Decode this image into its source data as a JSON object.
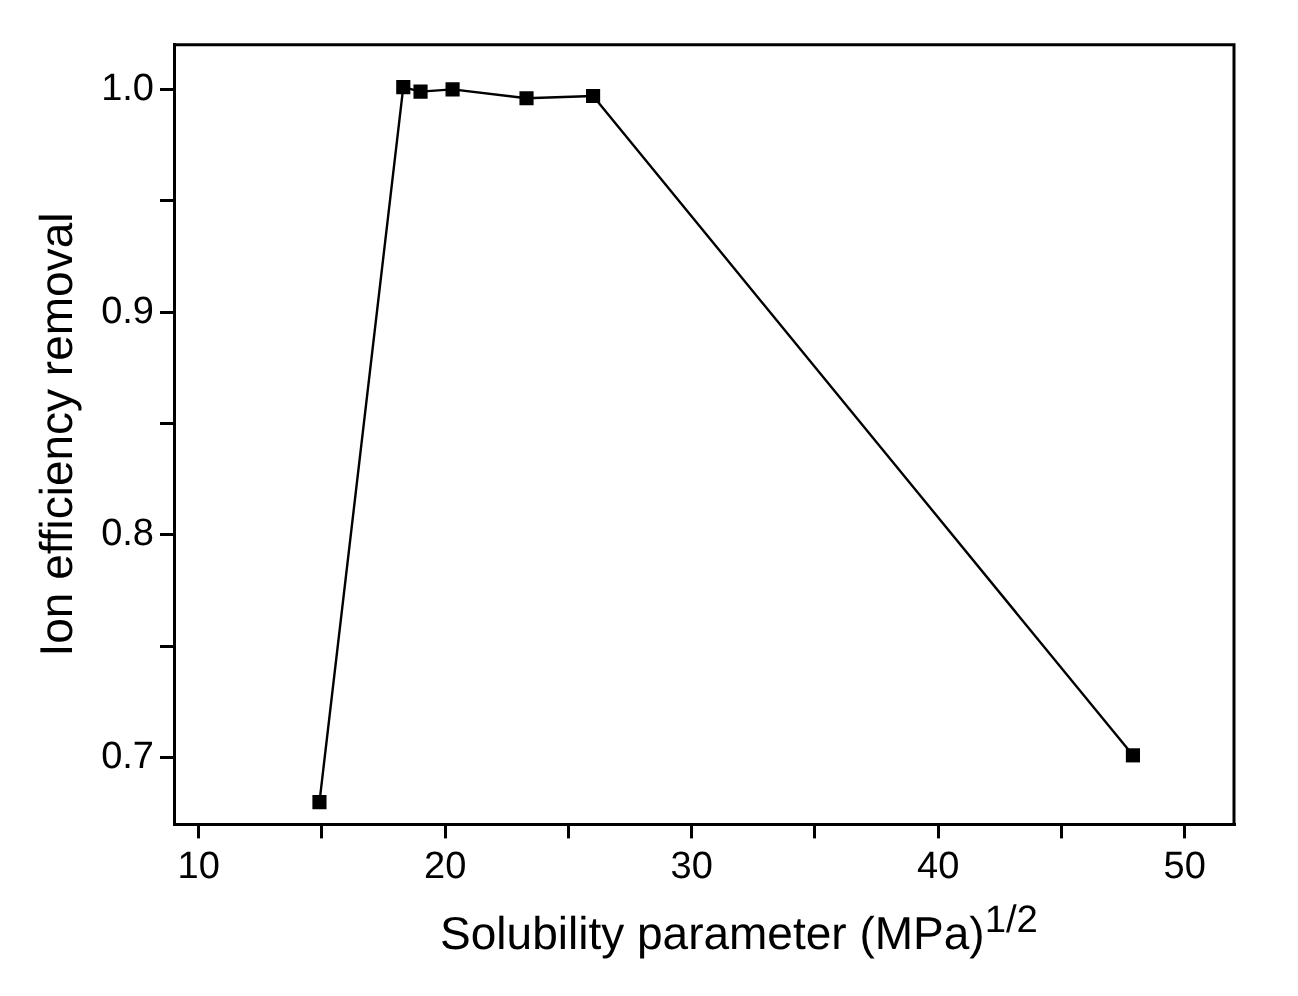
{
  "chart_data": {
    "type": "line",
    "xlabel": "Solubility parameter (MPa)$^{1/2}$",
    "ylabel": "Ion efficiency removal",
    "x": [
      14.9,
      18.3,
      19.0,
      20.3,
      23.3,
      26.0,
      47.9
    ],
    "series": [
      {
        "color": "#000000",
        "values": [
          0.68,
          1.001,
          0.999,
          1.0,
          0.996,
          0.997,
          0.701
        ]
      }
    ],
    "xlim": [
      9,
      52
    ],
    "xticks": [
      10,
      {
        "value": 15,
        "label": null
      },
      20,
      {
        "value": 25,
        "label": null
      },
      30,
      {
        "value": 35,
        "label": null
      },
      40,
      {
        "value": 45,
        "label": null
      },
      50
    ],
    "ylim": [
      0.67,
      1.02
    ],
    "yticks": [
      {
        "value": 0.7,
        "label": "0.7"
      },
      {
        "value": 0.75,
        "label": null
      },
      {
        "value": 0.8,
        "label": "0.8"
      },
      {
        "value": 0.85,
        "label": null
      },
      {
        "value": 0.9,
        "label": "0.9"
      },
      {
        "value": 0.95,
        "label": null
      },
      {
        "value": 1.0,
        "label": "1.0"
      }
    ],
    "marker": "square",
    "line_style": "solid",
    "grid": false,
    "legend": false
  }
}
